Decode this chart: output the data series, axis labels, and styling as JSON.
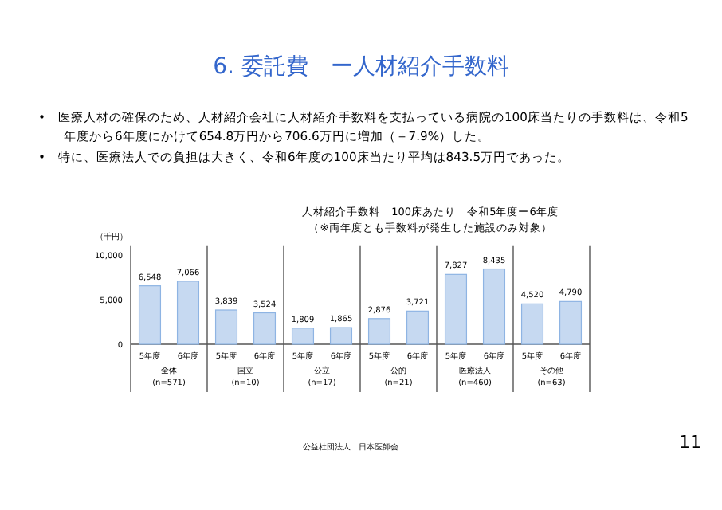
{
  "chart_data": {
    "type": "bar",
    "title": "6. 委託費　ー人材紹介手数料",
    "subtitle": "人材紹介手数料　100床あたり　令和5年度ー6年度",
    "ylabel": "（千円）",
    "categories": [
      "全体\n(n=571)",
      "国立\n(n=10)",
      "公立\n(n=17)",
      "公的\n(n=21)",
      "医療法人\n(n=460)",
      "その他\n(n=63)"
    ],
    "series": [
      {
        "name": "5年度",
        "color": "#c6d9f1",
        "values": [
          6548,
          3839,
          1809,
          2876,
          7827,
          4520
        ],
        "value_labels": [
          "6,548",
          "3,839",
          "1,809",
          "2,876",
          "7,827",
          "4,520"
        ]
      },
      {
        "name": "6年度",
        "color": "#c6d9f1",
        "values": [
          7066,
          3524,
          1865,
          3721,
          8435,
          4790
        ],
        "value_labels": [
          "7,066",
          "3,524",
          "1,865",
          "3,721",
          "8,435",
          "4,790"
        ]
      }
    ],
    "ylim": [
      0,
      11000
    ],
    "yticks": [
      {
        "value": 0,
        "label": "0"
      },
      {
        "value": 5000,
        "label": "5,000"
      },
      {
        "value": 10000,
        "label": "10,000"
      }
    ],
    "grid": false,
    "legend": false,
    "annotations": [
      "•　医療人材の確保のため、人材紹介会社に人材紹介手数料を支払っている病院の100床当たりの手数料は、令和5年度から6年度にかけて654.8万円から706.6万円に増加（＋7.9%）した。",
      "•　特に、医療法人での負担は大きく、令和6年度の100床当たり平均は843.5万円であった。",
      "（※両年度とも手数料が発生した施設のみ対象）",
      "公益社団法人　日本医師会",
      "11"
    ]
  }
}
